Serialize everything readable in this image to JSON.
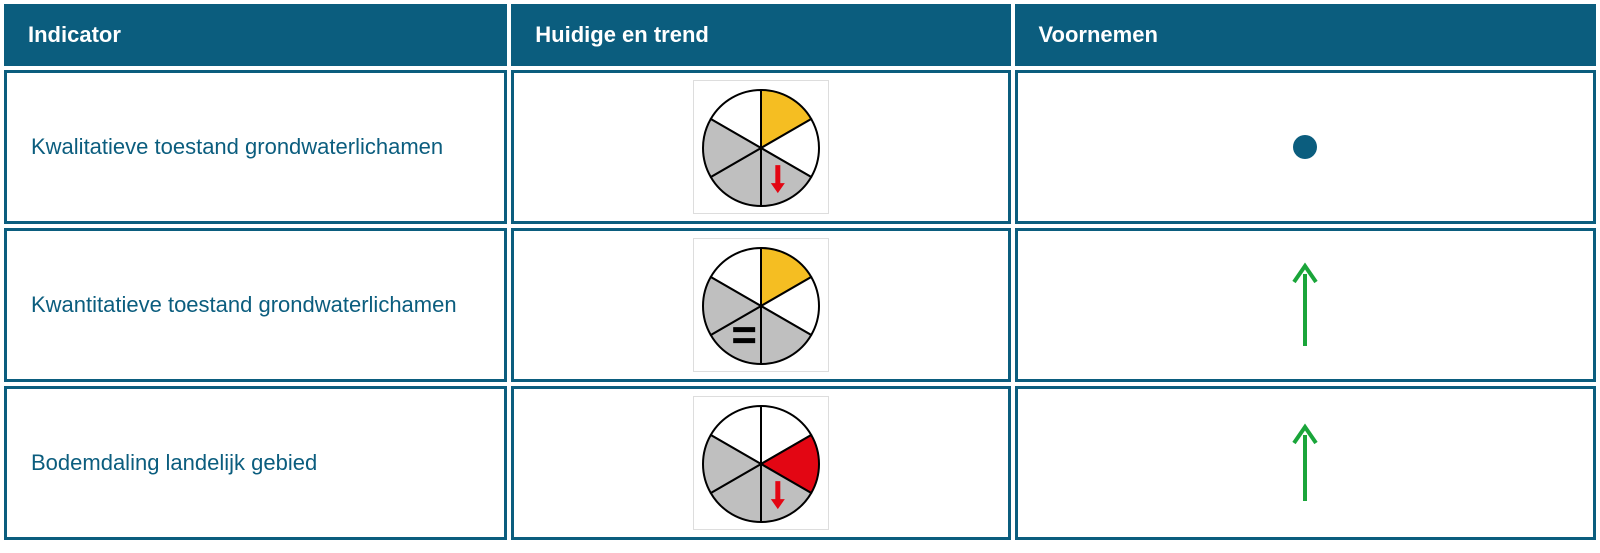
{
  "header": {
    "background_color": "#0b5d7e",
    "text_color": "#ffffff",
    "columns": {
      "indicator": "Indicator",
      "trend": "Huidige en trend",
      "voornemen": "Voornemen"
    }
  },
  "table": {
    "border_color": "#0b5d7e",
    "indicator_text_color": "#0b5d7e",
    "rows": [
      {
        "indicator": "Kwalitatieve toestand grondwaterlichamen",
        "pie": {
          "type": "hexpie",
          "slice_colors": [
            "#ffffff",
            "#f5be22",
            "#ffffff",
            "#bfbfbf",
            "#bfbfbf",
            "#bfbfbf"
          ],
          "outline_color": "#000000",
          "outline_width": 2,
          "radius": 58,
          "trend_symbol": {
            "type": "arrow_down_short",
            "color": "#e30613",
            "slice_index": 3
          }
        },
        "voornemen": {
          "type": "dot",
          "color": "#0b5d7e",
          "radius": 12
        }
      },
      {
        "indicator": "Kwantitatieve toestand grondwaterlichamen",
        "pie": {
          "type": "hexpie",
          "slice_colors": [
            "#ffffff",
            "#f5be22",
            "#ffffff",
            "#bfbfbf",
            "#bfbfbf",
            "#bfbfbf"
          ],
          "outline_color": "#000000",
          "outline_width": 2,
          "radius": 58,
          "trend_symbol": {
            "type": "equals",
            "color": "#000000",
            "slice_index": 4
          }
        },
        "voornemen": {
          "type": "arrow_up",
          "color": "#1aa53a",
          "length": 78
        }
      },
      {
        "indicator": "Bodemdaling landelijk gebied",
        "pie": {
          "type": "hexpie",
          "slice_colors": [
            "#ffffff",
            "#ffffff",
            "#e30613",
            "#bfbfbf",
            "#bfbfbf",
            "#bfbfbf"
          ],
          "outline_color": "#000000",
          "outline_width": 2,
          "radius": 58,
          "trend_symbol": {
            "type": "arrow_down_short",
            "color": "#e30613",
            "slice_index": 3
          }
        },
        "voornemen": {
          "type": "arrow_up",
          "color": "#1aa53a",
          "length": 72
        }
      }
    ]
  }
}
